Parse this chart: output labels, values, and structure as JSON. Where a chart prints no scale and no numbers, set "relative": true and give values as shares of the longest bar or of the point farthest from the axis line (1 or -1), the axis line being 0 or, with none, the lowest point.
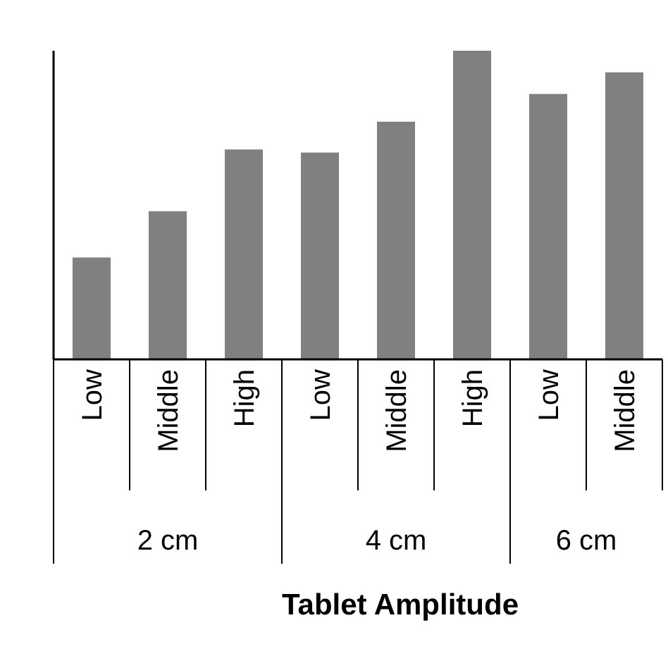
{
  "chart_data": {
    "type": "bar",
    "relative": true,
    "categories": [
      "Low",
      "Middle",
      "High",
      "Low",
      "Middle",
      "High",
      "Low",
      "Middle"
    ],
    "values": [
      0.33,
      0.48,
      0.68,
      0.67,
      0.77,
      1,
      0.86,
      0.93
    ],
    "color": "#808080",
    "xlabel": "Tablet Amplitude",
    "annotations": [
      "2 cm",
      "4 cm",
      "6 cm"
    ]
  }
}
